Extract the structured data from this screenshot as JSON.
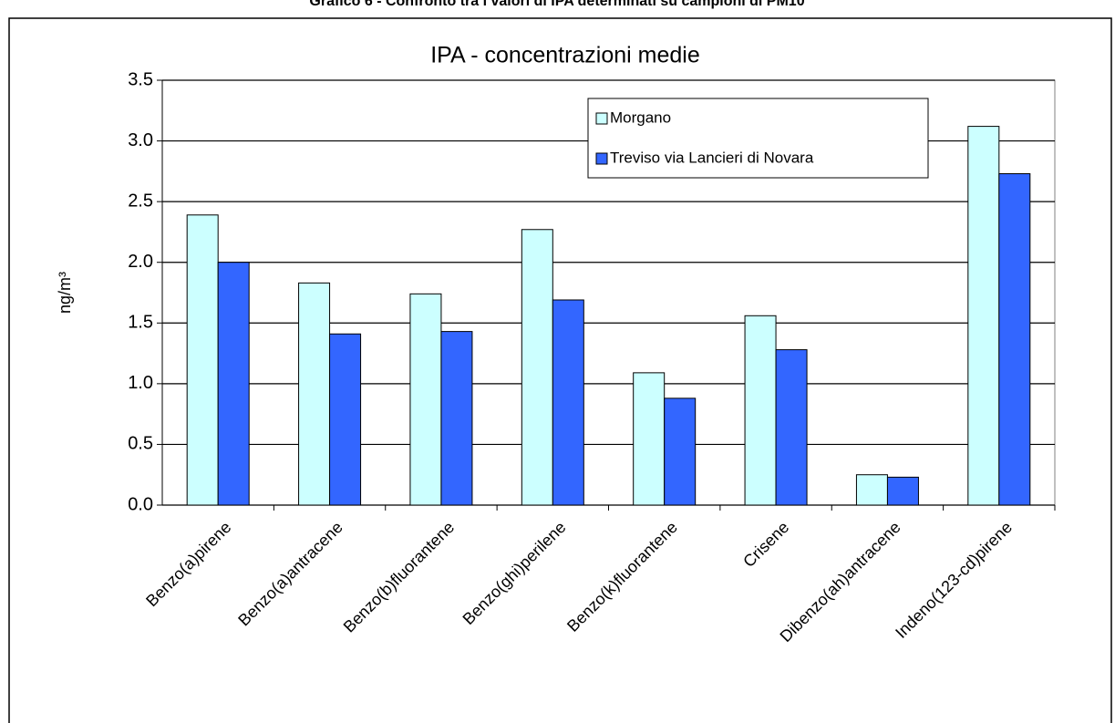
{
  "chart_data": {
    "type": "bar",
    "caption": "Grafico 6 - Confronto tra i valori di IPA determinati su campioni di PM10",
    "title": "IPA - concentrazioni medie",
    "y_label": "ng/m³",
    "categories": [
      "Benzo(a)pirene",
      "Benzo(a)antracene",
      "Benzo(b)fluorantene",
      "Benzo(ghi)perilene",
      "Benzo(k)fluorantene",
      "Crisene",
      "Dibenzo(ah)antracene",
      "Indeno(123-cd)pirene"
    ],
    "series": [
      {
        "name": "Morgano",
        "color": "#ccffff",
        "values": [
          2.39,
          1.83,
          1.74,
          2.27,
          1.09,
          1.56,
          0.25,
          3.12
        ]
      },
      {
        "name": "Treviso via Lancieri di Novara",
        "color": "#3366ff",
        "values": [
          2.0,
          1.41,
          1.43,
          1.69,
          0.88,
          1.28,
          0.23,
          2.73
        ]
      }
    ],
    "ylim": [
      0,
      3.5
    ],
    "yticks": [
      {
        "value": 0,
        "label": "0.0"
      },
      0.5,
      {
        "value": 1,
        "label": "1.0"
      },
      1.5,
      {
        "value": 2,
        "label": "2.0"
      },
      2.5,
      {
        "value": 3,
        "label": "3.0"
      },
      3.5
    ],
    "grid": true,
    "legend": "top-right"
  }
}
